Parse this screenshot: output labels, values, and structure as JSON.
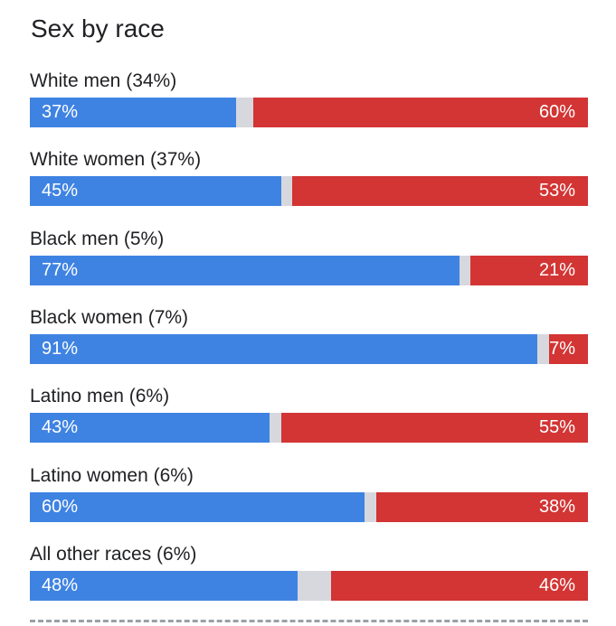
{
  "chart_data": {
    "type": "bar",
    "orientation": "horizontal",
    "stacked": true,
    "title": "Sex by race",
    "xlim": [
      0,
      100
    ],
    "categories": [
      "White men (34%)",
      "White women (37%)",
      "Black men (5%)",
      "Black women (7%)",
      "Latino men (6%)",
      "Latino women (6%)",
      "All other races (6%)"
    ],
    "series": [
      {
        "color": "#3f83e2",
        "values": [
          37,
          45,
          77,
          91,
          43,
          60,
          48
        ],
        "labels": [
          "37%",
          "45%",
          "77%",
          "91%",
          "43%",
          "60%",
          "48%"
        ]
      },
      {
        "color": "#d23534",
        "values": [
          60,
          53,
          21,
          7,
          55,
          38,
          46
        ],
        "labels": [
          "60%",
          "53%",
          "21%",
          "7%",
          "55%",
          "38%",
          "46%"
        ]
      }
    ],
    "remainder_color": "#d7d8de",
    "grid": false,
    "legend": "none"
  }
}
